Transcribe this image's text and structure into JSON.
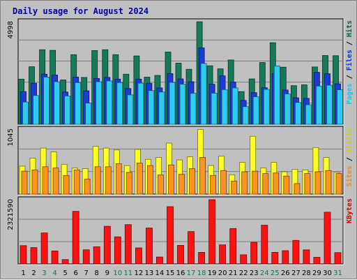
{
  "chart_data": {
    "type": "bar",
    "title": "Daily usage for August 2024",
    "categories": [
      "1",
      "2",
      "3",
      "4",
      "5",
      "6",
      "7",
      "8",
      "9",
      "10",
      "11",
      "12",
      "13",
      "14",
      "15",
      "16",
      "17",
      "18",
      "19",
      "20",
      "21",
      "22",
      "23",
      "24",
      "25",
      "26",
      "27",
      "28",
      "29",
      "30",
      "31"
    ],
    "weekend_days": [
      "3",
      "4",
      "10",
      "11",
      "17",
      "18",
      "24",
      "25",
      "31"
    ],
    "panels": [
      {
        "id": "top",
        "ymax_label": "4998",
        "ymax": 4998,
        "side_labels": [
          {
            "text": "Pages",
            "color": "#00ccff"
          },
          {
            "text": " / ",
            "color": "#000000"
          },
          {
            "text": "Files",
            "color": "#0033ff"
          },
          {
            "text": " / ",
            "color": "#000000"
          },
          {
            "text": "Hits",
            "color": "#006644"
          }
        ],
        "series": [
          {
            "name": "Hits",
            "color": "#16795a",
            "values": [
              2200,
              2800,
              3630,
              3600,
              2160,
              3390,
              2280,
              3590,
              3630,
              3390,
              2440,
              3330,
              2300,
              2380,
              3520,
              2980,
              2680,
              4990,
              2850,
              2700,
              3130,
              1590,
              2210,
              3010,
              3970,
              2780,
              1880,
              1920,
              2790,
              3350,
              3340
            ]
          },
          {
            "name": "Files",
            "color": "#1c3ad6",
            "values": [
              1590,
              2000,
              2440,
              2400,
              1570,
              2300,
              1630,
              2230,
              2280,
              2200,
              1740,
              2200,
              2000,
              1770,
              2470,
              2210,
              2070,
              3720,
              1950,
              2360,
              2060,
              1160,
              1540,
              1780,
              2470,
              1670,
              1290,
              1260,
              2530,
              2460,
              1970
            ]
          },
          {
            "name": "Pages",
            "color": "#2ccdf0",
            "values": [
              1080,
              1400,
              2300,
              2070,
              1380,
              2030,
              1030,
              2070,
              2110,
              2030,
              1430,
              2000,
              1640,
              1570,
              2040,
              1950,
              1510,
              2960,
              1510,
              1690,
              1770,
              860,
              1340,
              1700,
              2840,
              1480,
              1060,
              950,
              1860,
              1900,
              1680
            ]
          }
        ]
      },
      {
        "id": "middle",
        "ymax_label": "1045",
        "ymax": 1045,
        "side_labels": [
          {
            "text": "Sites",
            "color": "#ff8800"
          },
          {
            "text": " / ",
            "color": "#000000"
          },
          {
            "text": "Visits",
            "color": "#ddcc00"
          }
        ],
        "series": [
          {
            "name": "Visits",
            "color": "#ffff22",
            "values": [
              450,
              580,
              740,
              680,
              480,
              420,
              410,
              770,
              740,
              710,
              460,
              720,
              560,
              590,
              820,
              550,
              600,
              1040,
              460,
              610,
              310,
              510,
              930,
              420,
              510,
              360,
              400,
              390,
              750,
              590,
              350
            ]
          },
          {
            "name": "Sites",
            "color": "#ff9320",
            "values": [
              370,
              390,
              440,
              420,
              300,
              390,
              240,
              440,
              440,
              490,
              350,
              500,
              460,
              310,
              470,
              320,
              410,
              590,
              300,
              380,
              210,
              360,
              370,
              330,
              340,
              290,
              170,
              330,
              360,
              380,
              330
            ]
          }
        ]
      },
      {
        "id": "bottom",
        "ymax_label": "2321590",
        "ymax": 2321590,
        "side_labels": [
          {
            "text": "KBytes",
            "color": "#dd0000"
          }
        ],
        "series": [
          {
            "name": "KBytes",
            "color": "#ff1111",
            "values": [
              660000,
              590000,
              1120000,
              470000,
              160000,
              1900000,
              510000,
              620000,
              1360000,
              980000,
              1420000,
              580000,
              1300000,
              250000,
              2070000,
              670000,
              1170000,
              420000,
              2321590,
              690000,
              1280000,
              330000,
              780000,
              1400000,
              420000,
              480000,
              850000,
              510000,
              240000,
              1870000,
              410000
            ]
          }
        ]
      }
    ],
    "colors": {
      "background": "#c0c0c0",
      "plot_background": "#c0c0c0",
      "grid": "#808080",
      "title": "#0000aa",
      "weekday_label": "#000000",
      "weekend_label": "#008040"
    }
  }
}
